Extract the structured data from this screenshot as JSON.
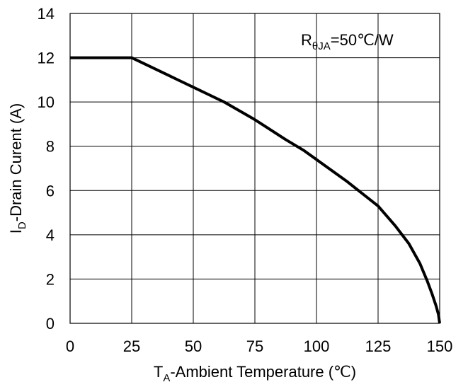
{
  "chart_data": {
    "type": "line",
    "title": "",
    "xlabel": {
      "main": "T",
      "sub": "A",
      "rest": "-Ambient  Temperature (℃)"
    },
    "ylabel": {
      "main": "I",
      "sub": "D",
      "rest": "-Drain Curent (A)"
    },
    "annotation": {
      "main": "R",
      "sub": "θJA",
      "rest": "=50℃/W"
    },
    "xlim": [
      0,
      150
    ],
    "ylim": [
      0,
      14
    ],
    "xticks": [
      0,
      25,
      50,
      75,
      100,
      125,
      150
    ],
    "yticks": [
      0,
      2,
      4,
      6,
      8,
      10,
      12,
      14
    ],
    "xtick_labels": [
      "0",
      "25",
      "50",
      "75",
      "100",
      "125",
      "150"
    ],
    "ytick_labels": [
      "0",
      "2",
      "4",
      "6",
      "8",
      "10",
      "12",
      "14"
    ],
    "grid": true,
    "series": [
      {
        "x": [
          0,
          25,
          40,
          55,
          62.5,
          75,
          87.5,
          95,
          100,
          112.5,
          125,
          132,
          137.5,
          142,
          145,
          147,
          148.5,
          149.5,
          150
        ],
        "y": [
          12,
          12,
          11.2,
          10.4,
          10.0,
          9.2,
          8.3,
          7.8,
          7.4,
          6.4,
          5.3,
          4.4,
          3.6,
          2.7,
          1.9,
          1.3,
          0.8,
          0.4,
          0
        ]
      }
    ]
  }
}
